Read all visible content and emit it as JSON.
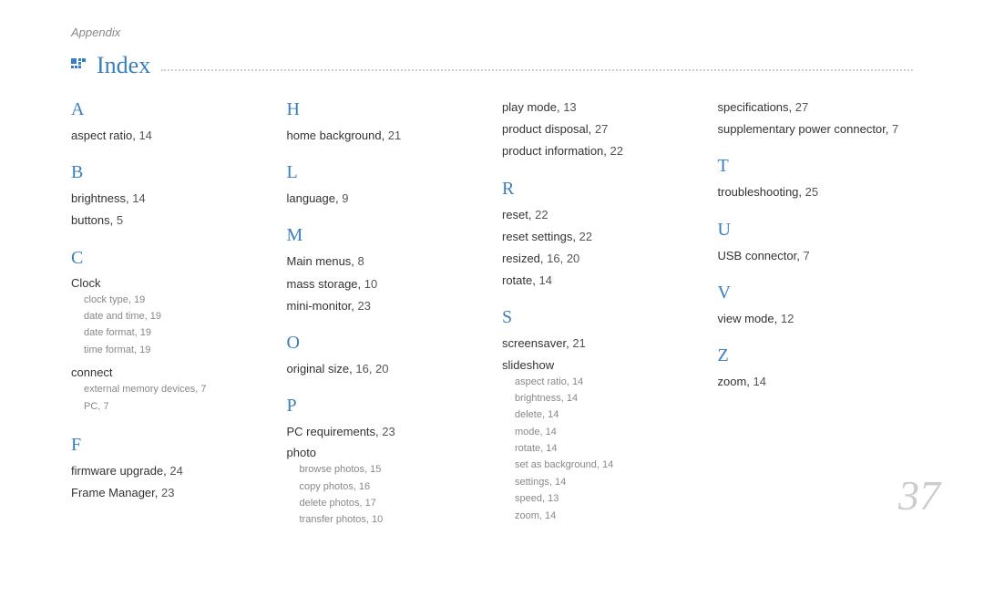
{
  "header": {
    "appendix": "Appendix",
    "title": "Index"
  },
  "page_number": "37",
  "columns": [
    {
      "sections": [
        {
          "letter": "A",
          "entries": [
            {
              "term": "aspect ratio,",
              "pages": "14"
            }
          ]
        },
        {
          "letter": "B",
          "entries": [
            {
              "term": "brightness,",
              "pages": "14"
            },
            {
              "term": "buttons,",
              "pages": "5"
            }
          ]
        },
        {
          "letter": "C",
          "entries": [
            {
              "term": "Clock",
              "pages": "",
              "subs": [
                {
                  "term": "clock type,",
                  "pages": "19"
                },
                {
                  "term": "date and time,",
                  "pages": "19"
                },
                {
                  "term": "date format,",
                  "pages": "19"
                },
                {
                  "term": "time format,",
                  "pages": "19"
                }
              ]
            },
            {
              "term": "connect",
              "pages": "",
              "subs": [
                {
                  "term": "external memory devices,",
                  "pages": "7"
                },
                {
                  "term": "PC,",
                  "pages": "7"
                }
              ]
            }
          ]
        },
        {
          "letter": "F",
          "entries": [
            {
              "term": "firmware upgrade,",
              "pages": "24"
            },
            {
              "term": "Frame Manager,",
              "pages": "23"
            }
          ]
        }
      ]
    },
    {
      "sections": [
        {
          "letter": "H",
          "entries": [
            {
              "term": "home background,",
              "pages": "21"
            }
          ]
        },
        {
          "letter": "L",
          "entries": [
            {
              "term": "language,",
              "pages": "9"
            }
          ]
        },
        {
          "letter": "M",
          "entries": [
            {
              "term": "Main menus,",
              "pages": "8"
            },
            {
              "term": "mass storage,",
              "pages": "10"
            },
            {
              "term": "mini-monitor,",
              "pages": "23"
            }
          ]
        },
        {
          "letter": "O",
          "entries": [
            {
              "term": "original size,",
              "pages": "16, 20"
            }
          ]
        },
        {
          "letter": "P",
          "entries": [
            {
              "term": "PC requirements,",
              "pages": "23"
            },
            {
              "term": "photo",
              "pages": "",
              "subs": [
                {
                  "term": "browse photos,",
                  "pages": "15"
                },
                {
                  "term": "copy photos,",
                  "pages": "16"
                },
                {
                  "term": "delete photos,",
                  "pages": "17"
                },
                {
                  "term": "transfer photos,",
                  "pages": "10"
                }
              ]
            }
          ]
        }
      ]
    },
    {
      "sections": [
        {
          "letter": "",
          "entries": [
            {
              "term": "play mode,",
              "pages": "13"
            },
            {
              "term": "product disposal,",
              "pages": "27"
            },
            {
              "term": "product information,",
              "pages": "22"
            }
          ]
        },
        {
          "letter": "R",
          "entries": [
            {
              "term": "reset,",
              "pages": "22"
            },
            {
              "term": "reset settings,",
              "pages": "22"
            },
            {
              "term": "resized,",
              "pages": "16, 20"
            },
            {
              "term": "rotate,",
              "pages": "14"
            }
          ]
        },
        {
          "letter": "S",
          "entries": [
            {
              "term": "screensaver,",
              "pages": "21"
            },
            {
              "term": "slideshow",
              "pages": "",
              "subs": [
                {
                  "term": "aspect ratio,",
                  "pages": "14"
                },
                {
                  "term": "brightness,",
                  "pages": "14"
                },
                {
                  "term": "delete,",
                  "pages": "14"
                },
                {
                  "term": "mode,",
                  "pages": "14"
                },
                {
                  "term": "rotate,",
                  "pages": "14"
                },
                {
                  "term": "set as background,",
                  "pages": "14"
                },
                {
                  "term": "settings,",
                  "pages": "14"
                },
                {
                  "term": "speed,",
                  "pages": "13"
                },
                {
                  "term": "zoom,",
                  "pages": "14"
                }
              ]
            }
          ]
        }
      ]
    },
    {
      "sections": [
        {
          "letter": "",
          "entries": [
            {
              "term": "specifications,",
              "pages": "27"
            },
            {
              "term": "supplementary power connector,",
              "pages": "7"
            }
          ]
        },
        {
          "letter": "T",
          "entries": [
            {
              "term": "troubleshooting,",
              "pages": "25"
            }
          ]
        },
        {
          "letter": "U",
          "entries": [
            {
              "term": "USB connector,",
              "pages": "7"
            }
          ]
        },
        {
          "letter": "V",
          "entries": [
            {
              "term": "view mode,",
              "pages": "12"
            }
          ]
        },
        {
          "letter": "Z",
          "entries": [
            {
              "term": "zoom,",
              "pages": "14"
            }
          ]
        }
      ]
    }
  ]
}
